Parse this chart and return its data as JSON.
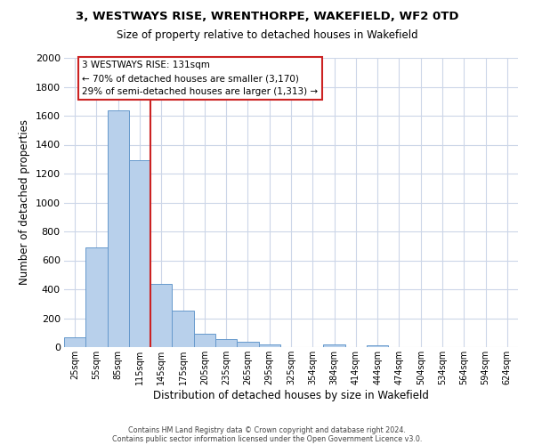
{
  "title1": "3, WESTWAYS RISE, WRENTHORPE, WAKEFIELD, WF2 0TD",
  "title2": "Size of property relative to detached houses in Wakefield",
  "xlabel": "Distribution of detached houses by size in Wakefield",
  "ylabel": "Number of detached properties",
  "categories": [
    "25sqm",
    "55sqm",
    "85sqm",
    "115sqm",
    "145sqm",
    "175sqm",
    "205sqm",
    "235sqm",
    "265sqm",
    "295sqm",
    "325sqm",
    "354sqm",
    "384sqm",
    "414sqm",
    "444sqm",
    "474sqm",
    "504sqm",
    "534sqm",
    "564sqm",
    "594sqm",
    "624sqm"
  ],
  "values": [
    65,
    690,
    1640,
    1290,
    440,
    250,
    90,
    55,
    35,
    20,
    0,
    0,
    20,
    0,
    10,
    0,
    0,
    0,
    0,
    0,
    0
  ],
  "bar_color": "#b8d0eb",
  "bar_edge_color": "#6699cc",
  "annotation_title": "3 WESTWAYS RISE: 131sqm",
  "annotation_line1": "← 70% of detached houses are smaller (3,170)",
  "annotation_line2": "29% of semi-detached houses are larger (1,313) →",
  "annotation_box_color": "#ffffff",
  "annotation_box_edge_color": "#cc2222",
  "red_line_color": "#cc2222",
  "ylim": [
    0,
    2000
  ],
  "yticks": [
    0,
    200,
    400,
    600,
    800,
    1000,
    1200,
    1400,
    1600,
    1800,
    2000
  ],
  "footer1": "Contains HM Land Registry data © Crown copyright and database right 2024.",
  "footer2": "Contains public sector information licensed under the Open Government Licence v3.0.",
  "bg_color": "#ffffff",
  "grid_color": "#ccd6e8"
}
